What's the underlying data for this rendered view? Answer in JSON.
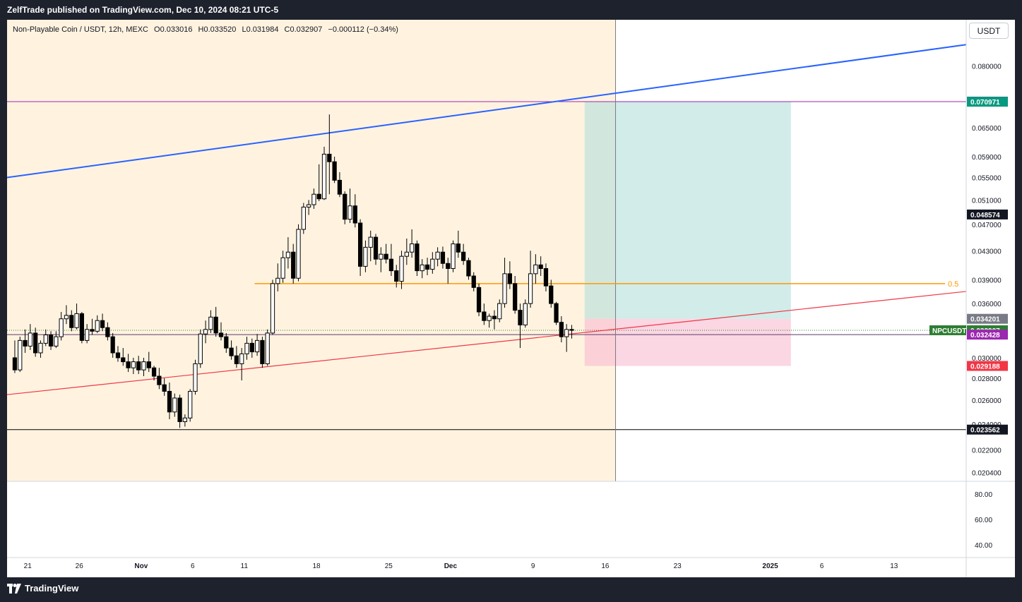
{
  "header": {
    "published": "ZelfTrade published on TradingView.com, Dec 10, 2024 08:21 UTC-5"
  },
  "legend": {
    "symbol": "Non-Playable Coin / USDT, 12h, MEXC",
    "open_key": "O",
    "open": "0.033016",
    "high_key": "H",
    "high": "0.033520",
    "low_key": "L",
    "low": "0.031984",
    "close_key": "C",
    "close": "0.032907",
    "change": "−0.000112 (−0.34%)"
  },
  "currency_button": "USDT",
  "footer": {
    "brand": "TradingView",
    "icon": "tradingview-logo-icon"
  },
  "colors": {
    "up_candle": "#ffffff",
    "down_candle": "#000000",
    "wick": "#000000",
    "highlight_zone": "#fff3e0",
    "blue_trendline": "#2962ff",
    "red_trendline": "#f23645",
    "fib_line": "#ff9800",
    "target_zone": "#b2dfdb",
    "stop_zone": "#f8bbd0",
    "price_tag_green": "#1b5e20",
    "tag_purple": "#9c27b0",
    "tag_teal": "#089981",
    "tag_red": "#f23645",
    "tag_black": "#131722",
    "tag_grey": "#787b86"
  },
  "chart_data": {
    "type": "candlestick",
    "symbol": "NPCUSDT",
    "interval": "12h",
    "exchange": "MEXC",
    "y_scale": "log",
    "ylim": [
      0.0198,
      0.0935
    ],
    "y_ticks": [
      "0.080000",
      "0.065000",
      "0.059000",
      "0.055000",
      "0.051000",
      "0.047000",
      "0.043000",
      "0.039000",
      "0.036000",
      "0.030000",
      "0.028000",
      "0.026000",
      "0.024000",
      "0.022000",
      "0.020400"
    ],
    "x_ticks": [
      {
        "label": "21",
        "date": "2024-10-21"
      },
      {
        "label": "26",
        "date": "2024-10-26"
      },
      {
        "label": "Nov",
        "date": "2024-11-01"
      },
      {
        "label": "6",
        "date": "2024-11-06"
      },
      {
        "label": "11",
        "date": "2024-11-11"
      },
      {
        "label": "18",
        "date": "2024-11-18"
      },
      {
        "label": "25",
        "date": "2024-11-25"
      },
      {
        "label": "Dec",
        "date": "2024-12-01"
      },
      {
        "label": "9",
        "date": "2024-12-09"
      },
      {
        "label": "16",
        "date": "2024-12-16"
      },
      {
        "label": "23",
        "date": "2024-12-23"
      },
      {
        "label": "2025",
        "date": "2025-01-01"
      },
      {
        "label": "6",
        "date": "2025-01-06"
      },
      {
        "label": "13",
        "date": "2025-01-13"
      }
    ],
    "xlim": [
      "2024-10-19",
      "2025-01-20"
    ],
    "candles": [
      {
        "t": "2024-10-19 12:00",
        "o": 0.03,
        "h": 0.0318,
        "l": 0.0285,
        "c": 0.0288
      },
      {
        "t": "2024-10-20 00:00",
        "o": 0.0288,
        "h": 0.0322,
        "l": 0.0286,
        "c": 0.0318
      },
      {
        "t": "2024-10-20 12:00",
        "o": 0.0318,
        "h": 0.033,
        "l": 0.0305,
        "c": 0.0312
      },
      {
        "t": "2024-10-21 00:00",
        "o": 0.0312,
        "h": 0.0336,
        "l": 0.0308,
        "c": 0.0326
      },
      {
        "t": "2024-10-21 12:00",
        "o": 0.0326,
        "h": 0.0332,
        "l": 0.0301,
        "c": 0.0305
      },
      {
        "t": "2024-10-22 00:00",
        "o": 0.0305,
        "h": 0.0318,
        "l": 0.03,
        "c": 0.0315
      },
      {
        "t": "2024-10-22 12:00",
        "o": 0.0315,
        "h": 0.033,
        "l": 0.0312,
        "c": 0.0324
      },
      {
        "t": "2024-10-23 00:00",
        "o": 0.0324,
        "h": 0.0328,
        "l": 0.0308,
        "c": 0.0312
      },
      {
        "t": "2024-10-23 12:00",
        "o": 0.0312,
        "h": 0.0328,
        "l": 0.031,
        "c": 0.0322
      },
      {
        "t": "2024-10-24 00:00",
        "o": 0.0322,
        "h": 0.035,
        "l": 0.0318,
        "c": 0.0342
      },
      {
        "t": "2024-10-24 12:00",
        "o": 0.0342,
        "h": 0.0358,
        "l": 0.0336,
        "c": 0.0346
      },
      {
        "t": "2024-10-25 00:00",
        "o": 0.0346,
        "h": 0.0352,
        "l": 0.0328,
        "c": 0.0332
      },
      {
        "t": "2024-10-25 12:00",
        "o": 0.0332,
        "h": 0.036,
        "l": 0.033,
        "c": 0.0348
      },
      {
        "t": "2024-10-26 00:00",
        "o": 0.0348,
        "h": 0.035,
        "l": 0.0315,
        "c": 0.0318
      },
      {
        "t": "2024-10-26 12:00",
        "o": 0.0318,
        "h": 0.0336,
        "l": 0.0315,
        "c": 0.033
      },
      {
        "t": "2024-10-27 00:00",
        "o": 0.033,
        "h": 0.0342,
        "l": 0.0324,
        "c": 0.0328
      },
      {
        "t": "2024-10-27 12:00",
        "o": 0.0328,
        "h": 0.0346,
        "l": 0.0326,
        "c": 0.034
      },
      {
        "t": "2024-10-28 00:00",
        "o": 0.034,
        "h": 0.0348,
        "l": 0.0328,
        "c": 0.0332
      },
      {
        "t": "2024-10-28 12:00",
        "o": 0.0332,
        "h": 0.0338,
        "l": 0.0318,
        "c": 0.0322
      },
      {
        "t": "2024-10-29 00:00",
        "o": 0.0322,
        "h": 0.0326,
        "l": 0.03,
        "c": 0.0305
      },
      {
        "t": "2024-10-29 12:00",
        "o": 0.0305,
        "h": 0.0312,
        "l": 0.0296,
        "c": 0.03
      },
      {
        "t": "2024-10-30 00:00",
        "o": 0.03,
        "h": 0.031,
        "l": 0.0292,
        "c": 0.0296
      },
      {
        "t": "2024-10-30 12:00",
        "o": 0.0296,
        "h": 0.0304,
        "l": 0.0286,
        "c": 0.029
      },
      {
        "t": "2024-10-31 00:00",
        "o": 0.029,
        "h": 0.03,
        "l": 0.0284,
        "c": 0.0296
      },
      {
        "t": "2024-10-31 12:00",
        "o": 0.0296,
        "h": 0.0302,
        "l": 0.0284,
        "c": 0.0288
      },
      {
        "t": "2024-11-01 00:00",
        "o": 0.0288,
        "h": 0.03,
        "l": 0.0282,
        "c": 0.0296
      },
      {
        "t": "2024-11-01 12:00",
        "o": 0.0296,
        "h": 0.0306,
        "l": 0.0286,
        "c": 0.029
      },
      {
        "t": "2024-11-02 00:00",
        "o": 0.029,
        "h": 0.0292,
        "l": 0.0278,
        "c": 0.0282
      },
      {
        "t": "2024-11-02 12:00",
        "o": 0.0282,
        "h": 0.029,
        "l": 0.027,
        "c": 0.0274
      },
      {
        "t": "2024-11-03 00:00",
        "o": 0.0274,
        "h": 0.028,
        "l": 0.0264,
        "c": 0.0268
      },
      {
        "t": "2024-11-03 12:00",
        "o": 0.0268,
        "h": 0.0276,
        "l": 0.0244,
        "c": 0.025
      },
      {
        "t": "2024-11-04 00:00",
        "o": 0.025,
        "h": 0.0266,
        "l": 0.0246,
        "c": 0.0262
      },
      {
        "t": "2024-11-04 12:00",
        "o": 0.0262,
        "h": 0.0265,
        "l": 0.0237,
        "c": 0.0242
      },
      {
        "t": "2024-11-05 00:00",
        "o": 0.0242,
        "h": 0.0248,
        "l": 0.0238,
        "c": 0.0245
      },
      {
        "t": "2024-11-05 12:00",
        "o": 0.0245,
        "h": 0.027,
        "l": 0.0242,
        "c": 0.0268
      },
      {
        "t": "2024-11-06 00:00",
        "o": 0.0268,
        "h": 0.0298,
        "l": 0.0265,
        "c": 0.0294
      },
      {
        "t": "2024-11-06 12:00",
        "o": 0.0294,
        "h": 0.033,
        "l": 0.029,
        "c": 0.0325
      },
      {
        "t": "2024-11-07 00:00",
        "o": 0.0325,
        "h": 0.034,
        "l": 0.0315,
        "c": 0.033
      },
      {
        "t": "2024-11-07 12:00",
        "o": 0.033,
        "h": 0.0352,
        "l": 0.0326,
        "c": 0.0344
      },
      {
        "t": "2024-11-08 00:00",
        "o": 0.0344,
        "h": 0.0356,
        "l": 0.0322,
        "c": 0.0326
      },
      {
        "t": "2024-11-08 12:00",
        "o": 0.0326,
        "h": 0.0338,
        "l": 0.0318,
        "c": 0.0322
      },
      {
        "t": "2024-11-09 00:00",
        "o": 0.0322,
        "h": 0.0326,
        "l": 0.0305,
        "c": 0.031
      },
      {
        "t": "2024-11-09 12:00",
        "o": 0.031,
        "h": 0.0318,
        "l": 0.0298,
        "c": 0.0302
      },
      {
        "t": "2024-11-10 00:00",
        "o": 0.0302,
        "h": 0.0312,
        "l": 0.029,
        "c": 0.0294
      },
      {
        "t": "2024-11-10 12:00",
        "o": 0.0294,
        "h": 0.031,
        "l": 0.0278,
        "c": 0.0304
      },
      {
        "t": "2024-11-11 00:00",
        "o": 0.0304,
        "h": 0.0322,
        "l": 0.0298,
        "c": 0.0315
      },
      {
        "t": "2024-11-11 12:00",
        "o": 0.0315,
        "h": 0.032,
        "l": 0.03,
        "c": 0.0306
      },
      {
        "t": "2024-11-12 00:00",
        "o": 0.0306,
        "h": 0.0325,
        "l": 0.0302,
        "c": 0.0318
      },
      {
        "t": "2024-11-12 12:00",
        "o": 0.0318,
        "h": 0.0322,
        "l": 0.029,
        "c": 0.0294
      },
      {
        "t": "2024-11-13 00:00",
        "o": 0.0294,
        "h": 0.033,
        "l": 0.0292,
        "c": 0.0326
      },
      {
        "t": "2024-11-13 12:00",
        "o": 0.0326,
        "h": 0.039,
        "l": 0.0324,
        "c": 0.0385
      },
      {
        "t": "2024-11-14 00:00",
        "o": 0.0385,
        "h": 0.0412,
        "l": 0.0375,
        "c": 0.0392
      },
      {
        "t": "2024-11-14 12:00",
        "o": 0.0392,
        "h": 0.043,
        "l": 0.0386,
        "c": 0.042
      },
      {
        "t": "2024-11-15 00:00",
        "o": 0.042,
        "h": 0.045,
        "l": 0.0405,
        "c": 0.0428
      },
      {
        "t": "2024-11-15 12:00",
        "o": 0.0428,
        "h": 0.044,
        "l": 0.0385,
        "c": 0.0392
      },
      {
        "t": "2024-11-16 00:00",
        "o": 0.0392,
        "h": 0.047,
        "l": 0.0388,
        "c": 0.0462
      },
      {
        "t": "2024-11-16 12:00",
        "o": 0.0462,
        "h": 0.0505,
        "l": 0.0455,
        "c": 0.0498
      },
      {
        "t": "2024-11-17 00:00",
        "o": 0.0498,
        "h": 0.051,
        "l": 0.0485,
        "c": 0.0502
      },
      {
        "t": "2024-11-17 12:00",
        "o": 0.0502,
        "h": 0.053,
        "l": 0.0495,
        "c": 0.052
      },
      {
        "t": "2024-11-18 00:00",
        "o": 0.052,
        "h": 0.0575,
        "l": 0.0508,
        "c": 0.0512
      },
      {
        "t": "2024-11-18 12:00",
        "o": 0.0512,
        "h": 0.061,
        "l": 0.051,
        "c": 0.0595
      },
      {
        "t": "2024-11-19 00:00",
        "o": 0.0595,
        "h": 0.068,
        "l": 0.052,
        "c": 0.058
      },
      {
        "t": "2024-11-19 12:00",
        "o": 0.058,
        "h": 0.059,
        "l": 0.054,
        "c": 0.0545
      },
      {
        "t": "2024-11-20 00:00",
        "o": 0.0545,
        "h": 0.056,
        "l": 0.0515,
        "c": 0.052
      },
      {
        "t": "2024-11-20 12:00",
        "o": 0.052,
        "h": 0.0525,
        "l": 0.047,
        "c": 0.0478
      },
      {
        "t": "2024-11-21 00:00",
        "o": 0.0478,
        "h": 0.053,
        "l": 0.0472,
        "c": 0.05
      },
      {
        "t": "2024-11-21 12:00",
        "o": 0.05,
        "h": 0.052,
        "l": 0.0465,
        "c": 0.0472
      },
      {
        "t": "2024-11-22 00:00",
        "o": 0.0472,
        "h": 0.0478,
        "l": 0.0395,
        "c": 0.0408
      },
      {
        "t": "2024-11-22 12:00",
        "o": 0.0408,
        "h": 0.0445,
        "l": 0.04,
        "c": 0.0435
      },
      {
        "t": "2024-11-23 00:00",
        "o": 0.0435,
        "h": 0.046,
        "l": 0.0415,
        "c": 0.045
      },
      {
        "t": "2024-11-23 12:00",
        "o": 0.045,
        "h": 0.0455,
        "l": 0.041,
        "c": 0.0418
      },
      {
        "t": "2024-11-24 00:00",
        "o": 0.0418,
        "h": 0.0435,
        "l": 0.04,
        "c": 0.0425
      },
      {
        "t": "2024-11-24 12:00",
        "o": 0.0425,
        "h": 0.044,
        "l": 0.0412,
        "c": 0.0418
      },
      {
        "t": "2024-11-25 00:00",
        "o": 0.0418,
        "h": 0.044,
        "l": 0.0395,
        "c": 0.0402
      },
      {
        "t": "2024-11-25 12:00",
        "o": 0.0402,
        "h": 0.041,
        "l": 0.038,
        "c": 0.0388
      },
      {
        "t": "2024-11-26 00:00",
        "o": 0.0388,
        "h": 0.043,
        "l": 0.0378,
        "c": 0.0422
      },
      {
        "t": "2024-11-26 12:00",
        "o": 0.0422,
        "h": 0.0448,
        "l": 0.041,
        "c": 0.0428
      },
      {
        "t": "2024-11-27 00:00",
        "o": 0.0428,
        "h": 0.0462,
        "l": 0.042,
        "c": 0.044
      },
      {
        "t": "2024-11-27 12:00",
        "o": 0.044,
        "h": 0.0445,
        "l": 0.0395,
        "c": 0.0402
      },
      {
        "t": "2024-11-28 00:00",
        "o": 0.0402,
        "h": 0.0418,
        "l": 0.0392,
        "c": 0.041
      },
      {
        "t": "2024-11-28 12:00",
        "o": 0.041,
        "h": 0.042,
        "l": 0.0396,
        "c": 0.0404
      },
      {
        "t": "2024-11-29 00:00",
        "o": 0.0404,
        "h": 0.0428,
        "l": 0.0398,
        "c": 0.0418
      },
      {
        "t": "2024-11-29 12:00",
        "o": 0.0418,
        "h": 0.0435,
        "l": 0.0408,
        "c": 0.0428
      },
      {
        "t": "2024-11-30 00:00",
        "o": 0.0428,
        "h": 0.0436,
        "l": 0.0405,
        "c": 0.0412
      },
      {
        "t": "2024-11-30 12:00",
        "o": 0.0412,
        "h": 0.042,
        "l": 0.0385,
        "c": 0.0405
      },
      {
        "t": "2024-12-01 00:00",
        "o": 0.0405,
        "h": 0.0445,
        "l": 0.04,
        "c": 0.044
      },
      {
        "t": "2024-12-01 12:00",
        "o": 0.044,
        "h": 0.046,
        "l": 0.042,
        "c": 0.0428
      },
      {
        "t": "2024-12-02 00:00",
        "o": 0.0428,
        "h": 0.044,
        "l": 0.041,
        "c": 0.0416
      },
      {
        "t": "2024-12-02 12:00",
        "o": 0.0416,
        "h": 0.042,
        "l": 0.039,
        "c": 0.0395
      },
      {
        "t": "2024-12-03 00:00",
        "o": 0.0395,
        "h": 0.04,
        "l": 0.0375,
        "c": 0.038
      },
      {
        "t": "2024-12-03 12:00",
        "o": 0.038,
        "h": 0.0385,
        "l": 0.0345,
        "c": 0.035
      },
      {
        "t": "2024-12-04 00:00",
        "o": 0.035,
        "h": 0.036,
        "l": 0.0335,
        "c": 0.034
      },
      {
        "t": "2024-12-04 12:00",
        "o": 0.034,
        "h": 0.0348,
        "l": 0.0332,
        "c": 0.0345
      },
      {
        "t": "2024-12-05 00:00",
        "o": 0.0345,
        "h": 0.0352,
        "l": 0.033,
        "c": 0.0342
      },
      {
        "t": "2024-12-05 12:00",
        "o": 0.0342,
        "h": 0.0365,
        "l": 0.0338,
        "c": 0.036
      },
      {
        "t": "2024-12-06 00:00",
        "o": 0.036,
        "h": 0.042,
        "l": 0.0355,
        "c": 0.0398
      },
      {
        "t": "2024-12-06 12:00",
        "o": 0.0398,
        "h": 0.0415,
        "l": 0.0378,
        "c": 0.0385
      },
      {
        "t": "2024-12-07 00:00",
        "o": 0.0385,
        "h": 0.0395,
        "l": 0.0348,
        "c": 0.0352
      },
      {
        "t": "2024-12-07 12:00",
        "o": 0.0352,
        "h": 0.036,
        "l": 0.031,
        "c": 0.0335
      },
      {
        "t": "2024-12-08 00:00",
        "o": 0.0335,
        "h": 0.0365,
        "l": 0.0332,
        "c": 0.036
      },
      {
        "t": "2024-12-08 12:00",
        "o": 0.036,
        "h": 0.043,
        "l": 0.0355,
        "c": 0.0398
      },
      {
        "t": "2024-12-09 00:00",
        "o": 0.0398,
        "h": 0.0425,
        "l": 0.0385,
        "c": 0.041
      },
      {
        "t": "2024-12-09 12:00",
        "o": 0.041,
        "h": 0.0422,
        "l": 0.0395,
        "c": 0.0405
      },
      {
        "t": "2024-12-10 00:00",
        "o": 0.0405,
        "h": 0.0412,
        "l": 0.0375,
        "c": 0.0382
      },
      {
        "t": "2024-12-10 12:00",
        "o": 0.0382,
        "h": 0.039,
        "l": 0.0355,
        "c": 0.036
      },
      {
        "t": "2024-12-11 00:00",
        "o": 0.036,
        "h": 0.0362,
        "l": 0.0335,
        "c": 0.0338
      },
      {
        "t": "2024-12-11 12:00",
        "o": 0.0338,
        "h": 0.0345,
        "l": 0.0316,
        "c": 0.0322
      },
      {
        "t": "2024-12-12 00:00",
        "o": 0.0322,
        "h": 0.0336,
        "l": 0.0306,
        "c": 0.033
      },
      {
        "t": "2024-12-12 12:00",
        "o": 0.033,
        "h": 0.0335,
        "l": 0.032,
        "c": 0.0329
      }
    ],
    "drawings": {
      "blue_trendline": {
        "from": {
          "date": "2024-10-19",
          "price": 0.055
        },
        "to": {
          "date": "2025-01-20",
          "price": 0.086
        }
      },
      "red_trendline": {
        "from": {
          "date": "2024-10-19",
          "price": 0.0265
        },
        "to": {
          "date": "2025-01-20",
          "price": 0.0375
        }
      },
      "fib_line": {
        "label": "0.5",
        "price": 0.0385,
        "from_date": "2024-11-12"
      },
      "highlighted_period": {
        "from": "2024-10-19",
        "to": "2024-12-17"
      },
      "vertical_marker_date": "2024-12-17",
      "long_position": {
        "from_date": "2024-12-14",
        "to_date": "2025-01-03",
        "entry": 0.034201,
        "target": 0.070971,
        "stop": 0.029188
      },
      "horizontal_levels": [
        0.071001,
        0.032428,
        0.023562
      ]
    },
    "price_labels": [
      {
        "text": "0.071001",
        "price": 0.071001,
        "color": "#9c27b0"
      },
      {
        "text": "0.070971",
        "price": 0.070971,
        "color": "#089981"
      },
      {
        "text": "0.048574",
        "price": 0.048574,
        "color": "#131722"
      },
      {
        "text": "0.034201",
        "price": 0.034201,
        "color": "#787b86"
      },
      {
        "text": "0.032907",
        "price": 0.032907,
        "color": "#2e7d32",
        "tag": "NPCUSDT"
      },
      {
        "text": "0.032428",
        "price": 0.032428,
        "color": "#9c27b0"
      },
      {
        "text": "0.029188",
        "price": 0.029188,
        "color": "#f23645"
      },
      {
        "text": "0.023562",
        "price": 0.023562,
        "color": "#131722"
      }
    ],
    "indicator": {
      "y_ticks": [
        "80.00",
        "60.00",
        "40.00"
      ],
      "ylim": [
        30,
        90
      ]
    }
  }
}
